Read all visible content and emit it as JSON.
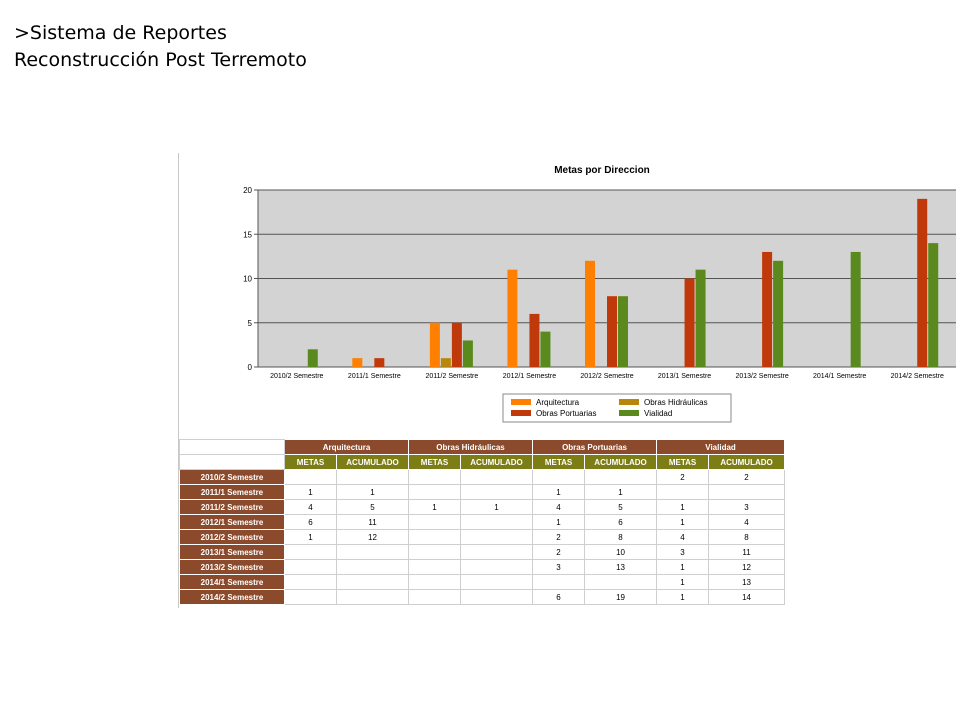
{
  "header": {
    "line1": ">Sistema de Reportes",
    "line2": "Reconstrucción Post Terremoto"
  },
  "chart_data": {
    "type": "bar",
    "title": "Metas por Direccion",
    "categories": [
      "2010/2 Semestre",
      "2011/1 Semestre",
      "2011/2 Semestre",
      "2012/1 Semestre",
      "2012/2 Semestre",
      "2013/1 Semestre",
      "2013/2 Semestre",
      "2014/1 Semestre",
      "2014/2 Semestre"
    ],
    "series": [
      {
        "name": "Arquitectura",
        "color": "#ff7f00",
        "values": [
          0,
          1,
          5,
          11,
          12,
          0,
          0,
          0,
          0
        ]
      },
      {
        "name": "Obras Hidráulicas",
        "color": "#b8860b",
        "values": [
          0,
          0,
          1,
          0,
          0,
          0,
          0,
          0,
          0
        ]
      },
      {
        "name": "Obras Portuarias",
        "color": "#c0390b",
        "values": [
          0,
          1,
          5,
          6,
          8,
          10,
          13,
          0,
          19
        ]
      },
      {
        "name": "Vialidad",
        "color": "#5a8a1e",
        "values": [
          2,
          0,
          3,
          4,
          8,
          11,
          12,
          13,
          14
        ]
      }
    ],
    "yticks": [
      0,
      5,
      10,
      15,
      20
    ],
    "ylim": [
      0,
      20
    ],
    "grid": true,
    "legend": "bottom",
    "plot_background": "#d3d3d3"
  },
  "table": {
    "groups": [
      "Arquitectura",
      "Obras Hidráulicas",
      "Obras Portuarias",
      "Vialidad"
    ],
    "subheaders": [
      "METAS",
      "ACUMULADO",
      "METAS",
      "ACUMULADO",
      "METAS",
      "ACUMULADO",
      "METAS",
      "ACUMULADO"
    ],
    "rows": [
      {
        "label": "2010/2 Semestre",
        "cells": [
          "",
          "",
          "",
          "",
          "",
          "",
          "2",
          "2"
        ]
      },
      {
        "label": "2011/1 Semestre",
        "cells": [
          "1",
          "1",
          "",
          "",
          "1",
          "1",
          "",
          ""
        ]
      },
      {
        "label": "2011/2 Semestre",
        "cells": [
          "4",
          "5",
          "1",
          "1",
          "4",
          "5",
          "1",
          "3"
        ]
      },
      {
        "label": "2012/1 Semestre",
        "cells": [
          "6",
          "11",
          "",
          "",
          "1",
          "6",
          "1",
          "4"
        ]
      },
      {
        "label": "2012/2 Semestre",
        "cells": [
          "1",
          "12",
          "",
          "",
          "2",
          "8",
          "4",
          "8"
        ]
      },
      {
        "label": "2013/1 Semestre",
        "cells": [
          "",
          "",
          "",
          "",
          "2",
          "10",
          "3",
          "11"
        ]
      },
      {
        "label": "2013/2 Semestre",
        "cells": [
          "",
          "",
          "",
          "",
          "3",
          "13",
          "1",
          "12"
        ]
      },
      {
        "label": "2014/1 Semestre",
        "cells": [
          "",
          "",
          "",
          "",
          "",
          "",
          "1",
          "13"
        ]
      },
      {
        "label": "2014/2 Semestre",
        "cells": [
          "",
          "",
          "",
          "",
          "6",
          "19",
          "1",
          "14"
        ]
      }
    ]
  }
}
